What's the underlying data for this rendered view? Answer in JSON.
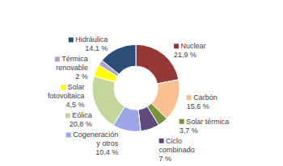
{
  "chart_data": {
    "type": "pie",
    "categories": [
      "Nuclear",
      "Carbón",
      "Solar térmica",
      "Ciclo\ncombinado",
      "Cogeneración\ny otros",
      "Eólica",
      "Solar\nfotovoltaica",
      "Térmica\nrenovable",
      "Hidráulica"
    ],
    "values": [
      21.9,
      15.6,
      3.7,
      7,
      10.4,
      20.8,
      4.5,
      2,
      14.1
    ],
    "value_labels": [
      "21,9 %",
      "15,6 %",
      "3,7 %",
      "7 %",
      "10,4 %",
      "20,8 %",
      "4,5 %",
      "2 %",
      "14,1 %"
    ],
    "colors": [
      "#953735",
      "#FAC090",
      "#77933C",
      "#604A7B",
      "#9DA7E8",
      "#C3D69B",
      "#FFFF00",
      "#B3A2C7",
      "#2C4D75"
    ],
    "data_labels": true
  }
}
